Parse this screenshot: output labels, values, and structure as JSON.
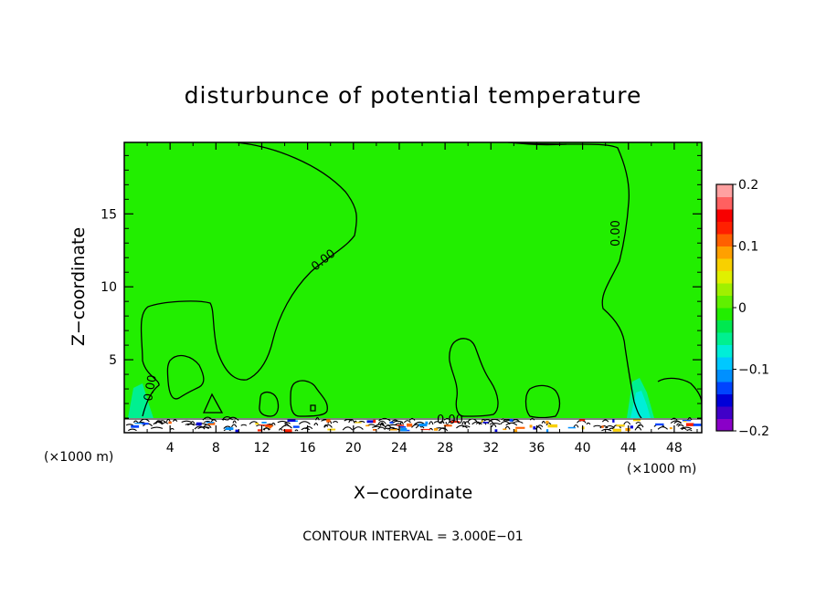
{
  "chart_data": {
    "type": "heatmap",
    "title": "disturbunce of potential temperature",
    "xlabel": "X−coordinate",
    "ylabel": "Z−coordinate",
    "x_unit_left": "(×1000 m)",
    "x_unit_right": "(×1000 m)",
    "x_ticks": [
      4,
      8,
      12,
      16,
      20,
      24,
      28,
      32,
      36,
      40,
      44,
      48
    ],
    "y_ticks": [
      5,
      10,
      15
    ],
    "xlim": [
      0,
      50.4
    ],
    "ylim": [
      0,
      19.9
    ],
    "colorbar": {
      "ticks": [
        "0.2",
        "0.1",
        "0",
        "−0.1",
        "−0.2"
      ],
      "values": [
        0.2,
        0.1,
        0,
        -0.1,
        -0.2
      ],
      "range": [
        -0.2,
        0.2
      ],
      "colors": [
        "#8a00c8",
        "#4000c8",
        "#0000d8",
        "#0044ff",
        "#0090ff",
        "#00c8ff",
        "#00eed8",
        "#00f090",
        "#00e850",
        "#22ee00",
        "#60f000",
        "#a0f000",
        "#e0f000",
        "#f8d000",
        "#ffa000",
        "#ff6000",
        "#ff2000",
        "#f80000",
        "#ff6060",
        "#ffa0a0"
      ]
    },
    "background_value": 0,
    "background_color": "#22ee00",
    "contour_labels": [
      "0.00",
      "0.00",
      "0.00",
      "0.00"
    ],
    "footer": "CONTOUR INTERVAL = 3.000E−01"
  }
}
